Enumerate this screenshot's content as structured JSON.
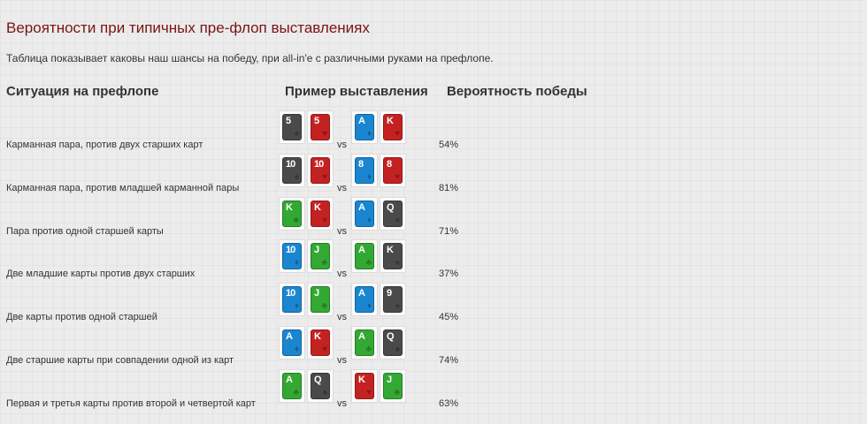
{
  "colors": {
    "title": "#7a1414",
    "text": "#333333",
    "suit_spades": "#4a4a4a",
    "suit_hearts": "#c42222",
    "suit_diamonds": "#1a86cf",
    "suit_clubs": "#33a833"
  },
  "title": "Вероятности при типичных пре-флоп выставлениях",
  "intro": "Таблица показывает каковы наш шансы на победу, при all-in'e с различными руками на префлопе.",
  "headers": {
    "situation": "Ситуация на префлопе",
    "example": "Пример выставления",
    "probability": "Вероятность победы"
  },
  "vs_label": "vs",
  "rows": [
    {
      "label": "Карманная пара, против двух старших карт",
      "hand1": [
        {
          "rank": "5",
          "suit": "spades"
        },
        {
          "rank": "5",
          "suit": "hearts"
        }
      ],
      "hand2": [
        {
          "rank": "A",
          "suit": "diamonds"
        },
        {
          "rank": "K",
          "suit": "hearts"
        }
      ],
      "probability": "54%"
    },
    {
      "label": "Карманная пара, против младшей карманной пары",
      "hand1": [
        {
          "rank": "10",
          "suit": "spades"
        },
        {
          "rank": "10",
          "suit": "hearts"
        }
      ],
      "hand2": [
        {
          "rank": "8",
          "suit": "diamonds"
        },
        {
          "rank": "8",
          "suit": "hearts"
        }
      ],
      "probability": "81%"
    },
    {
      "label": "Пара против одной старшей карты",
      "hand1": [
        {
          "rank": "K",
          "suit": "clubs"
        },
        {
          "rank": "K",
          "suit": "hearts"
        }
      ],
      "hand2": [
        {
          "rank": "A",
          "suit": "diamonds"
        },
        {
          "rank": "Q",
          "suit": "spades"
        }
      ],
      "probability": "71%"
    },
    {
      "label": "Две младшие карты против двух старших",
      "hand1": [
        {
          "rank": "10",
          "suit": "diamonds"
        },
        {
          "rank": "J",
          "suit": "clubs"
        }
      ],
      "hand2": [
        {
          "rank": "A",
          "suit": "clubs"
        },
        {
          "rank": "K",
          "suit": "spades"
        }
      ],
      "probability": "37%"
    },
    {
      "label": "Две карты против одной старшей",
      "hand1": [
        {
          "rank": "10",
          "suit": "diamonds"
        },
        {
          "rank": "J",
          "suit": "clubs"
        }
      ],
      "hand2": [
        {
          "rank": "A",
          "suit": "diamonds"
        },
        {
          "rank": "9",
          "suit": "spades"
        }
      ],
      "probability": "45%"
    },
    {
      "label": "Две старшие карты при совпадении одной из карт",
      "hand1": [
        {
          "rank": "A",
          "suit": "diamonds"
        },
        {
          "rank": "K",
          "suit": "hearts"
        }
      ],
      "hand2": [
        {
          "rank": "A",
          "suit": "clubs"
        },
        {
          "rank": "Q",
          "suit": "spades"
        }
      ],
      "probability": "74%"
    },
    {
      "label": "Первая и третья карты против второй и четвертой карт",
      "hand1": [
        {
          "rank": "A",
          "suit": "clubs"
        },
        {
          "rank": "Q",
          "suit": "spades"
        }
      ],
      "hand2": [
        {
          "rank": "K",
          "suit": "hearts"
        },
        {
          "rank": "J",
          "suit": "clubs"
        }
      ],
      "probability": "63%"
    }
  ]
}
